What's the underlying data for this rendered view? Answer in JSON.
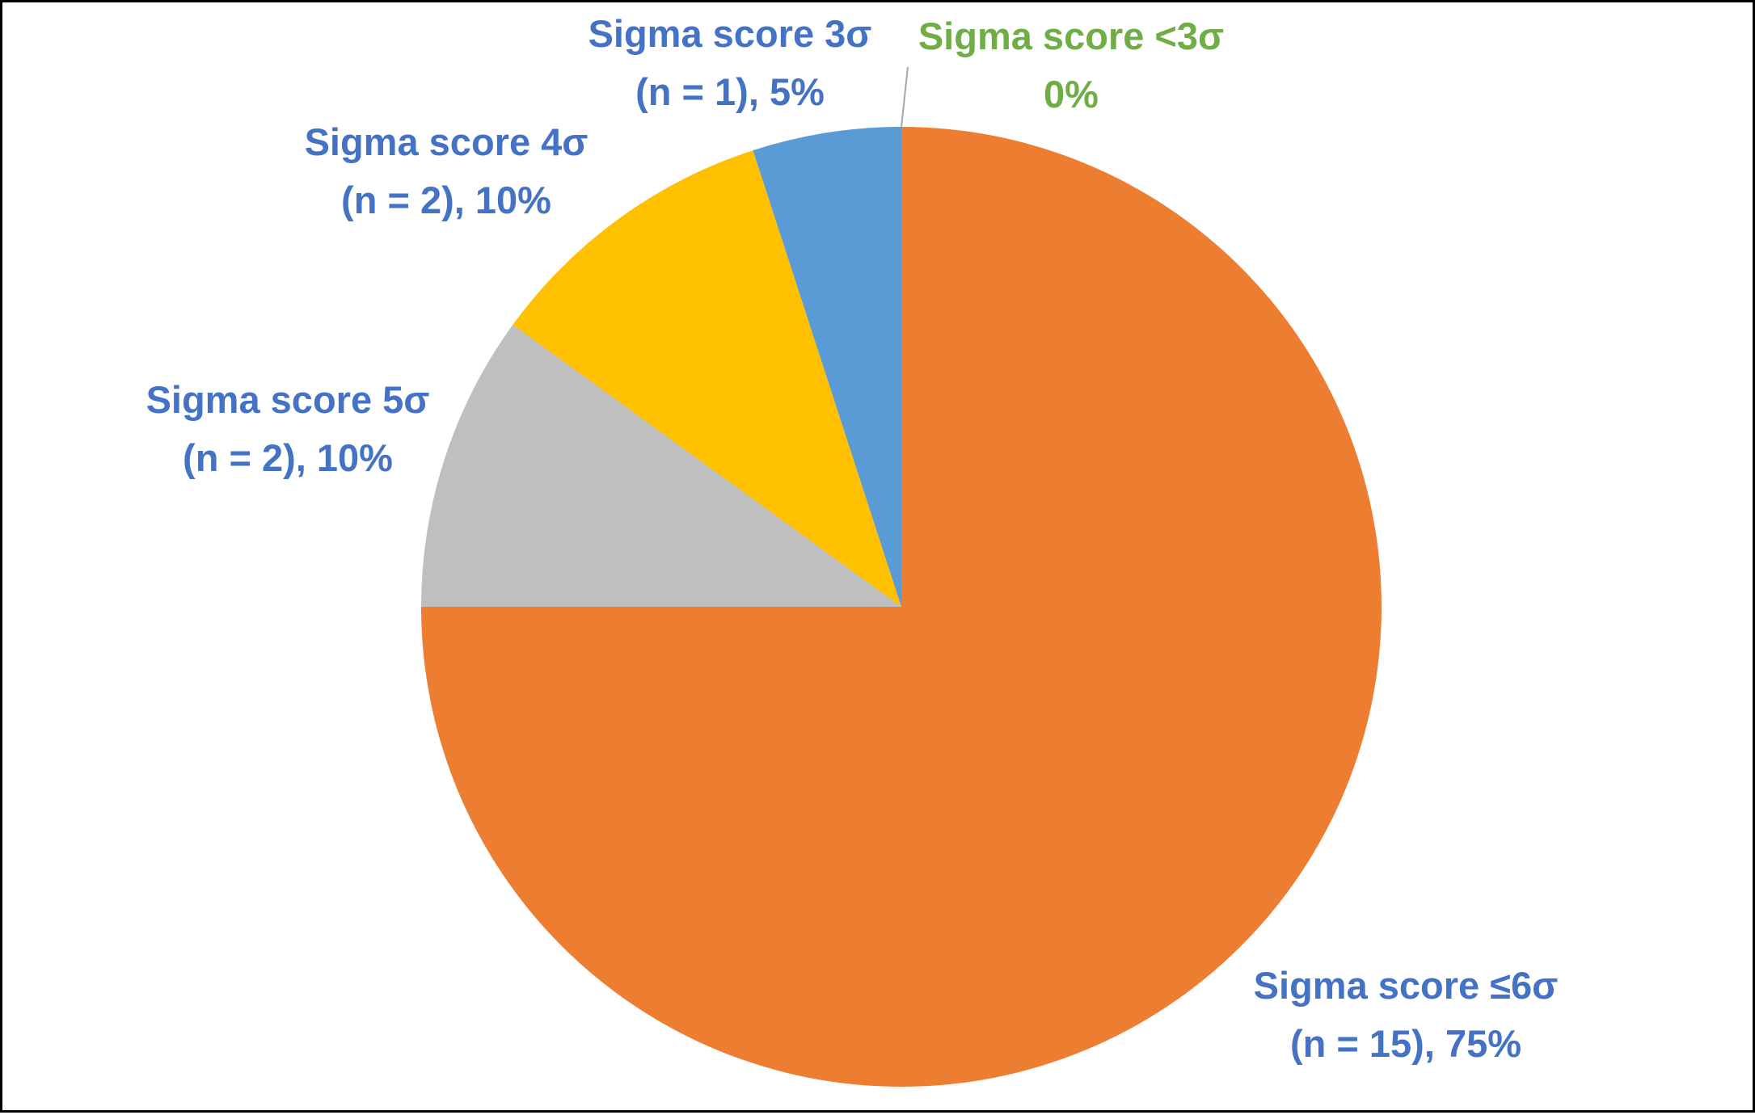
{
  "chart_data": {
    "type": "pie",
    "title": "",
    "start_angle_deg": 0,
    "direction": "clockwise",
    "slices": [
      {
        "category": "Sigma score ≤6σ",
        "n": 15,
        "value": 75,
        "label_line1": "Sigma score ≤6σ",
        "label_line2": "(n = 15), 75%",
        "color": "#ED7D31",
        "label_color": "#4472C4"
      },
      {
        "category": "Sigma score 5σ",
        "n": 2,
        "value": 10,
        "label_line1": "Sigma score 5σ",
        "label_line2": "(n = 2), 10%",
        "color": "#BFBFBF",
        "label_color": "#4472C4"
      },
      {
        "category": "Sigma score 4σ",
        "n": 2,
        "value": 10,
        "label_line1": "Sigma score 4σ",
        "label_line2": "(n = 2), 10%",
        "color": "#FFC000",
        "label_color": "#4472C4"
      },
      {
        "category": "Sigma score 3σ",
        "n": 1,
        "value": 5,
        "label_line1": "Sigma score 3σ",
        "label_line2": "(n = 1), 5%",
        "color": "#5B9BD5",
        "label_color": "#4472C4"
      },
      {
        "category": "Sigma score <3σ",
        "n": 0,
        "value": 0,
        "label_line1": "Sigma score <3σ",
        "label_line2": "0%",
        "color": "#70AD47",
        "label_color": "#70AD47"
      }
    ]
  }
}
